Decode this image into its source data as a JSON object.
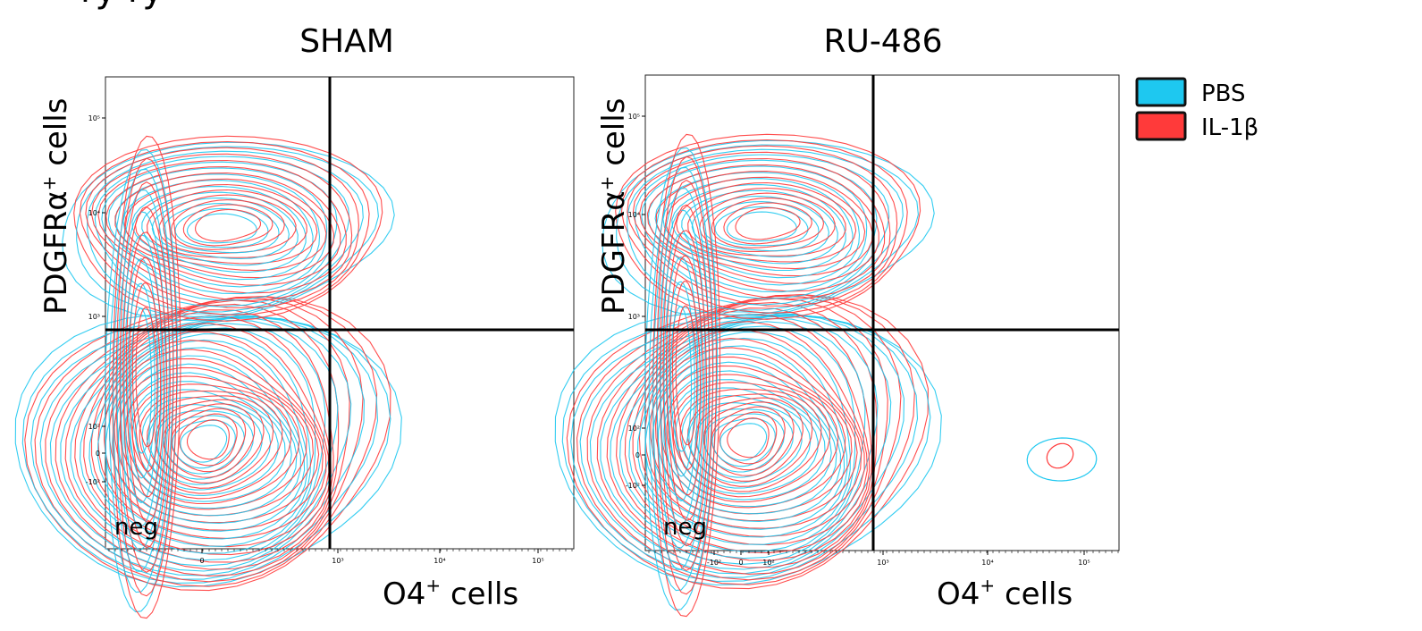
{
  "header_fragment": "ry   ry",
  "legend": [
    {
      "label": "PBS",
      "color": "#1ec8f0"
    },
    {
      "label": "IL-1β",
      "color": "#ff3a3a"
    }
  ],
  "chart_data": [
    {
      "type": "contour",
      "title": "SHAM",
      "xlabel": "O4",
      "xlabel_sup": "+",
      "xlabel_tail": " cells",
      "ylabel": "PDGFRα",
      "ylabel_sup": "+",
      "ylabel_tail": " cells",
      "x_ticks": [
        "0",
        "10³",
        "10⁴",
        "10⁵"
      ],
      "y_ticks": [
        "10⁵",
        "10⁴",
        "10³",
        "10²",
        "0",
        "-10²"
      ],
      "gate": {
        "x": 900,
        "y": 800
      },
      "corner_label": "neg",
      "series": [
        {
          "name": "PBS",
          "color": "#1ec8f0"
        },
        {
          "name": "IL-1β",
          "color": "#ff3a3a"
        }
      ]
    },
    {
      "type": "contour",
      "title": "RU-486",
      "xlabel": "O4",
      "xlabel_sup": "+",
      "xlabel_tail": " cells",
      "ylabel": "PDGFRα",
      "ylabel_sup": "+",
      "ylabel_tail": " cells",
      "x_ticks": [
        "-10²",
        "0",
        "10²",
        "10³",
        "10⁴",
        "10⁵"
      ],
      "y_ticks": [
        "10⁵",
        "10⁴",
        "10³",
        "10²",
        "0",
        "-10²"
      ],
      "gate": {
        "x": 900,
        "y": 800
      },
      "corner_label": "neg",
      "series": [
        {
          "name": "PBS",
          "color": "#1ec8f0"
        },
        {
          "name": "IL-1β",
          "color": "#ff3a3a"
        }
      ]
    }
  ]
}
